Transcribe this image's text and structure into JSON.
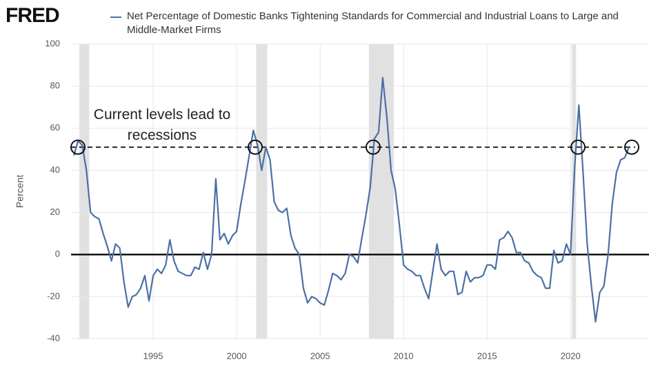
{
  "logo": "FRED",
  "chart_data": {
    "type": "line",
    "y_label": "Percent",
    "annotation": "Current levels lead to recessions",
    "xlim": [
      1990.08,
      2024.7
    ],
    "xticks": [
      1995,
      2000,
      2005,
      2010,
      2015,
      2020
    ],
    "ylim": [
      -40,
      100
    ],
    "yticks": [
      -40,
      -20,
      0,
      20,
      40,
      60,
      80,
      100
    ],
    "grid": true,
    "reference_line": 51,
    "recessions": [
      [
        1990.58,
        1991.17
      ],
      [
        2001.17,
        2001.83
      ],
      [
        2007.92,
        2009.42
      ],
      [
        2020.08,
        2020.33
      ]
    ],
    "x": [
      1990.25,
      1990.5,
      1990.75,
      1991,
      1991.25,
      1991.5,
      1991.75,
      1992,
      1992.25,
      1992.5,
      1992.75,
      1993,
      1993.25,
      1993.5,
      1993.75,
      1994,
      1994.25,
      1994.5,
      1994.75,
      1995,
      1995.25,
      1995.5,
      1995.75,
      1996,
      1996.25,
      1996.5,
      1996.75,
      1997,
      1997.25,
      1997.5,
      1997.75,
      1998,
      1998.25,
      1998.5,
      1998.75,
      1999,
      1999.25,
      1999.5,
      1999.75,
      2000,
      2000.25,
      2000.5,
      2000.75,
      2001,
      2001.25,
      2001.5,
      2001.75,
      2002,
      2002.25,
      2002.5,
      2002.75,
      2003,
      2003.25,
      2003.5,
      2003.75,
      2004,
      2004.25,
      2004.5,
      2004.75,
      2005,
      2005.25,
      2005.5,
      2005.75,
      2006,
      2006.25,
      2006.5,
      2006.75,
      2007,
      2007.25,
      2007.5,
      2007.75,
      2008,
      2008.25,
      2008.5,
      2008.75,
      2009,
      2009.25,
      2009.5,
      2009.75,
      2010,
      2010.25,
      2010.5,
      2010.75,
      2011,
      2011.25,
      2011.5,
      2011.75,
      2012,
      2012.25,
      2012.5,
      2012.75,
      2013,
      2013.25,
      2013.5,
      2013.75,
      2014,
      2014.25,
      2014.5,
      2014.75,
      2015,
      2015.25,
      2015.5,
      2015.75,
      2016,
      2016.25,
      2016.5,
      2016.75,
      2017,
      2017.25,
      2017.5,
      2017.75,
      2018,
      2018.25,
      2018.5,
      2018.75,
      2019,
      2019.25,
      2019.5,
      2019.75,
      2020,
      2020.25,
      2020.5,
      2020.75,
      2021,
      2021.25,
      2021.5,
      2021.75,
      2022,
      2022.25,
      2022.5,
      2022.75,
      2023,
      2023.25,
      2023.5
    ],
    "series": [
      {
        "name": "Net Percentage of Domestic Banks Tightening Standards for Commercial and Industrial Loans to Large and Middle-Market Firms",
        "color": "#4a6fa5",
        "values": [
          47,
          54,
          52,
          40,
          20,
          18,
          17,
          10,
          4,
          -3,
          5,
          3,
          -13,
          -25,
          -20,
          -19,
          -16,
          -10,
          -22,
          -10,
          -7,
          -9,
          -5,
          7,
          -3,
          -8,
          -9,
          -10,
          -10,
          -6,
          -7,
          1,
          -7,
          0,
          36,
          7,
          10,
          5,
          9,
          11,
          24,
          35,
          47,
          59,
          52,
          40,
          51,
          45,
          25,
          21,
          20,
          22,
          9,
          3,
          0,
          -16,
          -23,
          -20,
          -21,
          -23,
          -24,
          -17,
          -9,
          -10,
          -12,
          -9,
          0,
          -1,
          -4,
          8,
          19,
          32,
          55,
          58,
          84,
          65,
          40,
          31,
          14,
          -5,
          -7,
          -8,
          -10,
          -10,
          -16,
          -21,
          -8,
          5,
          -7,
          -10,
          -8,
          -8,
          -19,
          -18,
          -8,
          -13,
          -11,
          -11,
          -10,
          -5,
          -5,
          -7,
          7,
          8,
          11,
          8,
          1,
          1,
          -3,
          -4,
          -8,
          -10,
          -11,
          -16,
          -16,
          2,
          -4,
          -3,
          5,
          0,
          42,
          71,
          39,
          5,
          -15,
          -32,
          -18,
          -15,
          0,
          24,
          39,
          45,
          46,
          51
        ]
      }
    ]
  }
}
